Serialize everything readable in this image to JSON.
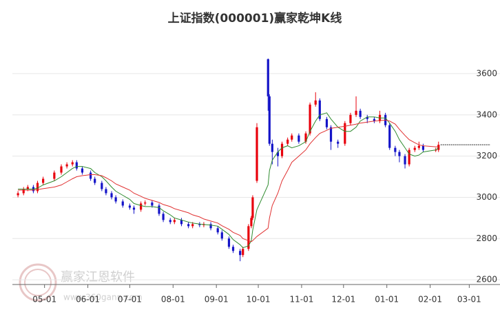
{
  "chart_data": {
    "type": "candlestick",
    "title": "上证指数(000001)赢家乾坤K线",
    "watermark": {
      "name": "赢家江恩软件",
      "url": "www.360gann.com"
    },
    "up_color": "#e8000b",
    "down_color": "#1414c8",
    "x": [
      "04-12",
      "04-16",
      "04-19",
      "04-23",
      "04-26",
      "04-30",
      "05-08",
      "05-13",
      "05-17",
      "05-21",
      "05-24",
      "05-28",
      "06-03",
      "06-06",
      "06-11",
      "06-14",
      "06-18",
      "06-21",
      "06-26",
      "07-01",
      "07-04",
      "07-09",
      "07-12",
      "07-17",
      "07-22",
      "07-25",
      "07-30",
      "08-02",
      "08-07",
      "08-12",
      "08-15",
      "08-20",
      "08-23",
      "08-28",
      "09-02",
      "09-05",
      "09-10",
      "09-13",
      "09-18",
      "09-20",
      "09-24",
      "09-26",
      "09-27",
      "09-30",
      "10-08",
      "10-09",
      "10-11",
      "10-15",
      "10-18",
      "10-22",
      "10-25",
      "10-30",
      "11-04",
      "11-07",
      "11-11",
      "11-14",
      "11-19",
      "11-22",
      "11-27",
      "12-02",
      "12-06",
      "12-10",
      "12-13",
      "12-18",
      "12-23",
      "12-27",
      "12-31",
      "01-03",
      "01-07",
      "01-10",
      "01-14",
      "01-17",
      "01-21",
      "01-24",
      "01-27",
      "02-05",
      "02-07"
    ],
    "open": [
      3010,
      3020,
      3040,
      3050,
      3030,
      3070,
      3090,
      3120,
      3150,
      3160,
      3170,
      3140,
      3120,
      3090,
      3070,
      3040,
      3020,
      3000,
      2980,
      2960,
      2950,
      2940,
      2970,
      2975,
      2960,
      2920,
      2890,
      2880,
      2890,
      2870,
      2860,
      2870,
      2865,
      2870,
      2850,
      2830,
      2800,
      2760,
      2740,
      2720,
      2750,
      2860,
      2900,
      3080,
      3670,
      3490,
      3260,
      3220,
      3200,
      3260,
      3280,
      3300,
      3270,
      3310,
      3450,
      3470,
      3380,
      3340,
      3270,
      3260,
      3360,
      3400,
      3420,
      3390,
      3380,
      3370,
      3400,
      3350,
      3240,
      3220,
      3200,
      3160,
      3230,
      3240,
      3250,
      3230,
      3230
    ],
    "high": [
      3030,
      3050,
      3060,
      3060,
      3080,
      3100,
      3130,
      3160,
      3170,
      3180,
      3180,
      3150,
      3130,
      3100,
      3080,
      3050,
      3030,
      3010,
      2990,
      2970,
      2960,
      2980,
      2985,
      2985,
      2970,
      2930,
      2900,
      2900,
      2900,
      2880,
      2880,
      2880,
      2880,
      2880,
      2860,
      2840,
      2810,
      2770,
      2750,
      2760,
      2870,
      2910,
      3010,
      3360,
      3674,
      3500,
      3280,
      3240,
      3270,
      3290,
      3310,
      3310,
      3320,
      3460,
      3510,
      3480,
      3390,
      3350,
      3280,
      3370,
      3410,
      3490,
      3430,
      3400,
      3390,
      3420,
      3410,
      3360,
      3250,
      3230,
      3210,
      3240,
      3250,
      3270,
      3260,
      3240,
      3270
    ],
    "low": [
      3000,
      3010,
      3030,
      3020,
      3020,
      3060,
      3080,
      3110,
      3140,
      3150,
      3130,
      3110,
      3080,
      3060,
      3030,
      3010,
      2990,
      2970,
      2950,
      2940,
      2920,
      2930,
      2960,
      2950,
      2910,
      2880,
      2870,
      2870,
      2860,
      2850,
      2850,
      2855,
      2855,
      2840,
      2820,
      2790,
      2750,
      2730,
      2690,
      2710,
      2740,
      2850,
      2890,
      3070,
      3420,
      3250,
      3160,
      3150,
      3190,
      3250,
      3270,
      3260,
      3260,
      3300,
      3440,
      3370,
      3330,
      3230,
      3240,
      3250,
      3350,
      3390,
      3380,
      3360,
      3360,
      3360,
      3340,
      3230,
      3200,
      3170,
      3140,
      3150,
      3220,
      3230,
      3220,
      3220,
      3220
    ],
    "close": [
      3020,
      3040,
      3050,
      3030,
      3070,
      3090,
      3120,
      3150,
      3160,
      3170,
      3140,
      3120,
      3090,
      3070,
      3040,
      3020,
      3000,
      2980,
      2960,
      2950,
      2940,
      2970,
      2975,
      2960,
      2920,
      2890,
      2880,
      2890,
      2870,
      2860,
      2870,
      2865,
      2870,
      2850,
      2830,
      2800,
      2760,
      2740,
      2720,
      2750,
      2860,
      2900,
      3000,
      3340,
      3490,
      3260,
      3220,
      3200,
      3260,
      3280,
      3300,
      3270,
      3310,
      3450,
      3470,
      3380,
      3340,
      3270,
      3260,
      3360,
      3400,
      3420,
      3390,
      3380,
      3370,
      3400,
      3350,
      3240,
      3220,
      3200,
      3160,
      3230,
      3240,
      3250,
      3230,
      3230,
      3255
    ],
    "lines": [
      {
        "color": "#2e8b2e",
        "values": [
          3040,
          3040,
          3040,
          3040,
          3045,
          3060,
          3080,
          3100,
          3120,
          3140,
          3150,
          3150,
          3140,
          3120,
          3100,
          3080,
          3050,
          3030,
          3010,
          2990,
          2970,
          2960,
          2955,
          2955,
          2950,
          2935,
          2915,
          2900,
          2890,
          2880,
          2875,
          2870,
          2868,
          2865,
          2860,
          2845,
          2820,
          2795,
          2770,
          2755,
          2765,
          2790,
          2840,
          2940,
          3060,
          3130,
          3180,
          3220,
          3240,
          3250,
          3240,
          3250,
          3270,
          3320,
          3370,
          3400,
          3410,
          3380,
          3340,
          3320,
          3320,
          3340,
          3370,
          3390,
          3390,
          3385,
          3385,
          3360,
          3320,
          3280,
          3240,
          3210,
          3200,
          3205,
          3220,
          3230,
          3240
        ]
      },
      {
        "color": "#e03030",
        "values": [
          3035,
          3035,
          3035,
          3035,
          3038,
          3042,
          3050,
          3060,
          3075,
          3090,
          3100,
          3105,
          3110,
          3110,
          3105,
          3095,
          3080,
          3065,
          3050,
          3035,
          3020,
          3005,
          2995,
          2985,
          2975,
          2965,
          2955,
          2945,
          2935,
          2925,
          2915,
          2905,
          2895,
          2885,
          2875,
          2862,
          2845,
          2830,
          2815,
          2800,
          2790,
          2785,
          2790,
          2810,
          2850,
          2900,
          2960,
          3020,
          3080,
          3130,
          3170,
          3200,
          3230,
          3260,
          3290,
          3310,
          3325,
          3335,
          3340,
          3345,
          3350,
          3355,
          3360,
          3365,
          3370,
          3372,
          3375,
          3370,
          3355,
          3330,
          3300,
          3280,
          3265,
          3255,
          3250,
          3245,
          3245
        ]
      }
    ],
    "xlim": [
      "04-08",
      "03-23"
    ],
    "xticks": [
      "05-01",
      "06-01",
      "07-01",
      "08-01",
      "09-01",
      "10-01",
      "11-01",
      "12-01",
      "01-01",
      "02-01",
      "03-01"
    ],
    "ylim": [
      2577,
      3807
    ],
    "yticks": [
      2600,
      2800,
      3000,
      3200,
      3400,
      3600
    ],
    "grid": true
  }
}
